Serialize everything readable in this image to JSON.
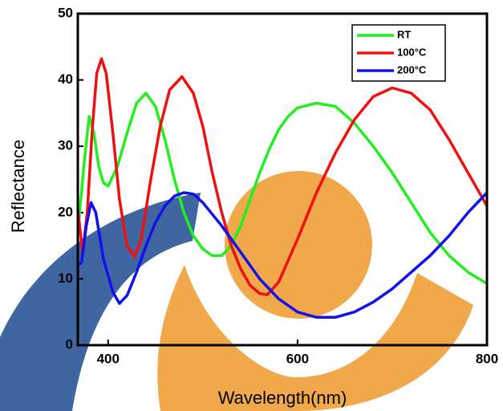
{
  "chart_data": {
    "type": "line",
    "xlabel": "Wavelength(nm)",
    "ylabel": "Reflectance",
    "xlim": [
      368,
      800
    ],
    "ylim": [
      0,
      50
    ],
    "xticks": [
      400,
      600,
      800
    ],
    "yticks": [
      0,
      10,
      20,
      30,
      40,
      50
    ],
    "legend": "upper right",
    "series": [
      {
        "name": "RT",
        "color": "#22ee22",
        "x": [
          368,
          375,
          380,
          385,
          390,
          395,
          400,
          410,
          420,
          430,
          440,
          450,
          460,
          470,
          480,
          490,
          500,
          510,
          520,
          530,
          540,
          550,
          560,
          570,
          580,
          590,
          600,
          620,
          640,
          660,
          680,
          700,
          720,
          740,
          760,
          780,
          800
        ],
        "values": [
          17,
          28,
          34.5,
          32,
          27,
          24.5,
          24,
          27,
          32,
          36.5,
          38,
          36,
          31,
          25,
          20,
          16.5,
          14.5,
          13.5,
          13.5,
          15,
          18,
          22,
          26,
          29.5,
          32.5,
          34.5,
          35.8,
          36.5,
          36,
          33.5,
          30,
          26,
          21.5,
          17,
          13.5,
          11,
          9.3
        ]
      },
      {
        "name": "100°C",
        "color": "#ee1111",
        "x": [
          368,
          373,
          378,
          383,
          388,
          393,
          398,
          405,
          412,
          420,
          428,
          435,
          445,
          455,
          465,
          478,
          490,
          500,
          510,
          520,
          530,
          540,
          550,
          560,
          568,
          580,
          600,
          620,
          640,
          660,
          680,
          700,
          720,
          740,
          760,
          780,
          800
        ],
        "values": [
          20.5,
          14,
          20,
          32,
          41,
          43.2,
          41,
          32,
          22,
          15,
          13.3,
          16,
          25,
          33,
          38.5,
          40.5,
          38,
          33,
          26,
          20,
          15,
          11.5,
          9,
          7.8,
          7.6,
          9.5,
          16,
          23,
          29,
          34,
          37.5,
          38.8,
          38,
          35.5,
          31,
          26,
          21
        ]
      },
      {
        "name": "200°C",
        "color": "#1111ee",
        "x": [
          368,
          372,
          377,
          382,
          387,
          395,
          405,
          412,
          420,
          430,
          440,
          450,
          460,
          470,
          480,
          490,
          500,
          520,
          540,
          560,
          580,
          600,
          620,
          640,
          660,
          680,
          700,
          720,
          740,
          760,
          780,
          800
        ],
        "values": [
          12,
          12.5,
          18,
          21.5,
          20,
          13,
          8,
          6.3,
          7.5,
          11,
          15,
          18.5,
          21,
          22.5,
          23,
          22.8,
          21.5,
          18,
          14,
          10,
          7,
          5,
          4.2,
          4.2,
          5,
          6.5,
          8.5,
          11,
          13.5,
          16.5,
          20,
          23
        ]
      }
    ]
  }
}
